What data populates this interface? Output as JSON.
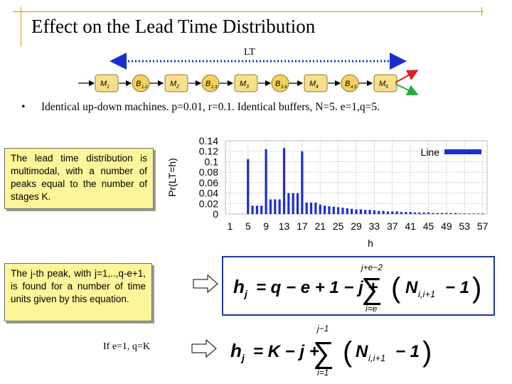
{
  "title": "Effect on the Lead Time Distribution",
  "lt_label": "LT",
  "line_diagram": {
    "nodes": [
      {
        "id": "M1",
        "main": "M",
        "sub": "1",
        "kind": "machine"
      },
      {
        "id": "B12",
        "main": "B",
        "sub": "1,2",
        "kind": "buffer"
      },
      {
        "id": "M2",
        "main": "M",
        "sub": "2",
        "kind": "machine"
      },
      {
        "id": "B23",
        "main": "B",
        "sub": "2,3",
        "kind": "buffer"
      },
      {
        "id": "M3",
        "main": "M",
        "sub": "3",
        "kind": "machine"
      },
      {
        "id": "B34",
        "main": "B",
        "sub": "3,4",
        "kind": "buffer"
      },
      {
        "id": "M4",
        "main": "M",
        "sub": "4",
        "kind": "machine"
      },
      {
        "id": "B45",
        "main": "B",
        "sub": "4,5",
        "kind": "buffer"
      },
      {
        "id": "M5",
        "main": "M",
        "sub": "5",
        "kind": "machine"
      }
    ],
    "colors": {
      "machine": "#f7df8a",
      "buffer": "#f4d15a",
      "lt_arrow": "#1a2fd0",
      "exit_up": "#e0201c",
      "exit_down": "#2aaa3a"
    }
  },
  "bullet": "Identical up-down machines. p=0.01, r=0.1. Identical buffers, N=5. e=1,q=5.",
  "callout_1": "The lead time distribution is multimodal, with a number of peaks equal to the number of stages K.",
  "callout_2": "The j-th peak, with j=1,..,q-e+1, is found for a number of time units given by this equation.",
  "if_text": "If e=1, q=K",
  "formula_1": {
    "lhs": "h",
    "lhs_sub": "j",
    "rhs_terms": "= q − e + 1 − j +",
    "sum_upper": "j+e−2",
    "sum_lower": "i=e",
    "body": "N",
    "body_sub": "i,i+1",
    "tail": "− 1"
  },
  "formula_2": {
    "lhs": "h",
    "lhs_sub": "j",
    "rhs_terms": "= K − j +",
    "sum_upper": "j−1",
    "sum_lower": "i=1",
    "body": "N",
    "body_sub": "i,i+1",
    "tail": "− 1"
  },
  "chart_data": {
    "type": "bar",
    "xlabel": "h",
    "ylabel": "Pr(LT=h)",
    "ylim": [
      0,
      0.14
    ],
    "yticks": [
      "0.14",
      "0.12",
      "0.1",
      "0.08",
      "0.06",
      "0.04",
      "0.02",
      "0"
    ],
    "xticks": [
      "1",
      "5",
      "9",
      "13",
      "17",
      "21",
      "25",
      "29",
      "33",
      "37",
      "41",
      "45",
      "49",
      "53",
      "57"
    ],
    "grid": true,
    "legend": {
      "label": "Line",
      "position": "top-right"
    },
    "color": "#1a2fd0",
    "series": [
      {
        "name": "Line",
        "x": [
          5,
          6,
          7,
          8,
          9,
          10,
          11,
          12,
          13,
          14,
          15,
          16,
          17,
          18,
          19,
          20,
          21,
          22,
          23,
          24,
          25,
          26,
          27,
          28,
          29,
          30,
          31,
          32,
          33,
          34,
          35,
          36,
          37,
          38,
          39,
          40,
          41,
          42,
          43,
          44,
          45,
          46,
          47,
          48,
          49,
          50,
          51,
          52,
          53,
          54,
          55,
          56,
          57
        ],
        "values": [
          0.105,
          0.016,
          0.016,
          0.016,
          0.124,
          0.028,
          0.028,
          0.028,
          0.126,
          0.04,
          0.04,
          0.04,
          0.12,
          0.022,
          0.022,
          0.022,
          0.018,
          0.016,
          0.015,
          0.014,
          0.013,
          0.012,
          0.011,
          0.01,
          0.009,
          0.009,
          0.008,
          0.008,
          0.007,
          0.006,
          0.006,
          0.005,
          0.005,
          0.005,
          0.004,
          0.004,
          0.004,
          0.003,
          0.003,
          0.003,
          0.003,
          0.002,
          0.002,
          0.002,
          0.002,
          0.002,
          0.002,
          0.001,
          0.001,
          0.001,
          0.001,
          0.001,
          0.001
        ]
      }
    ]
  }
}
